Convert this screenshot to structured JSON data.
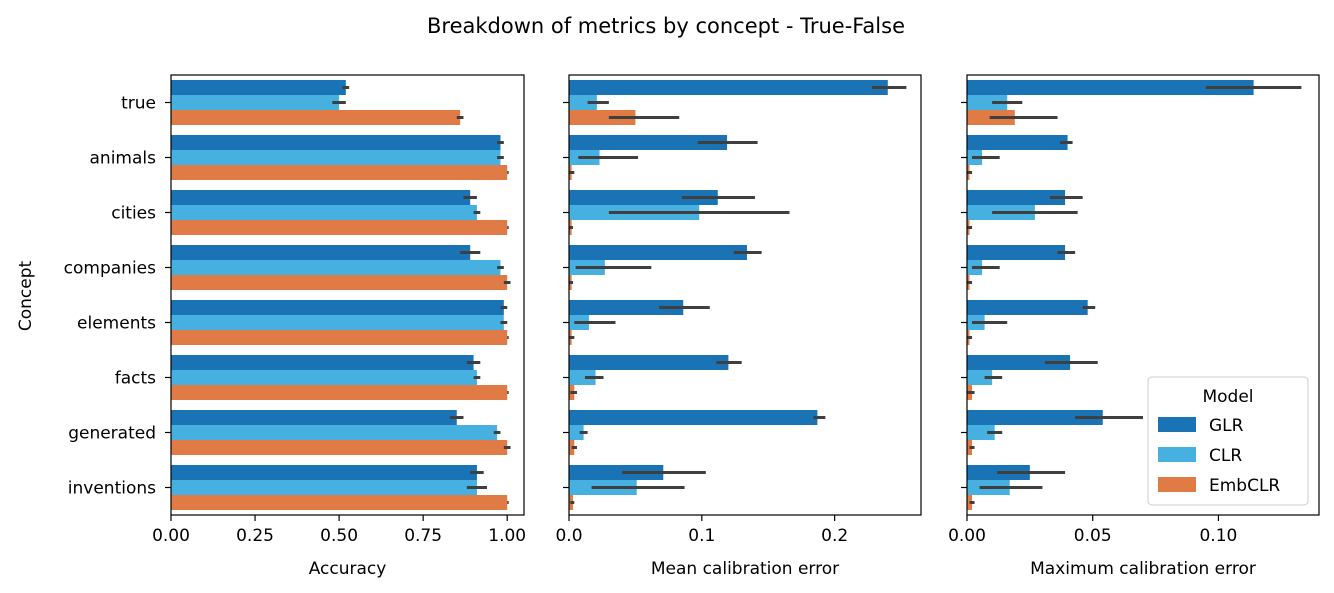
{
  "chart_data": {
    "type": "bar",
    "orientation": "horizontal",
    "title": "Breakdown of metrics by concept - True-False",
    "ylabel": "Concept",
    "categories": [
      "true",
      "animals",
      "cities",
      "companies",
      "elements",
      "facts",
      "generated",
      "inventions"
    ],
    "legend": {
      "title": "Model",
      "placement": "lower right",
      "entries": [
        "GLR",
        "CLR",
        "EmbCLR"
      ]
    },
    "colors": {
      "GLR": "#1a73b4",
      "CLR": "#46b1e1",
      "EmbCLR": "#e07b45",
      "error_bar": "#3f3f3f"
    },
    "panels": [
      {
        "xlabel": "Accuracy",
        "xlim": [
          0,
          1.05
        ],
        "xticks": [
          0.0,
          0.25,
          0.5,
          0.75,
          1.0
        ],
        "xtick_labels": [
          "0.00",
          "0.25",
          "0.50",
          "0.75",
          "1.00"
        ],
        "series": [
          {
            "name": "GLR",
            "values": [
              0.52,
              0.98,
              0.89,
              0.89,
              0.99,
              0.9,
              0.85,
              0.91
            ],
            "ci": [
              [
                0.51,
                0.53
              ],
              [
                0.97,
                0.99
              ],
              [
                0.87,
                0.91
              ],
              [
                0.86,
                0.92
              ],
              [
                0.98,
                1.0
              ],
              [
                0.88,
                0.92
              ],
              [
                0.83,
                0.87
              ],
              [
                0.89,
                0.93
              ]
            ]
          },
          {
            "name": "CLR",
            "values": [
              0.5,
              0.98,
              0.91,
              0.98,
              0.99,
              0.91,
              0.97,
              0.91
            ],
            "ci": [
              [
                0.48,
                0.52
              ],
              [
                0.97,
                0.99
              ],
              [
                0.9,
                0.92
              ],
              [
                0.97,
                0.99
              ],
              [
                0.98,
                1.0
              ],
              [
                0.9,
                0.92
              ],
              [
                0.96,
                0.98
              ],
              [
                0.88,
                0.94
              ]
            ]
          },
          {
            "name": "EmbCLR",
            "values": [
              0.86,
              1.0,
              1.0,
              1.0,
              1.0,
              1.0,
              1.0,
              1.0
            ],
            "ci": [
              [
                0.85,
                0.87
              ],
              [
                1.0,
                1.0
              ],
              [
                1.0,
                1.0
              ],
              [
                0.99,
                1.01
              ],
              [
                1.0,
                1.0
              ],
              [
                1.0,
                1.0
              ],
              [
                0.99,
                1.01
              ],
              [
                1.0,
                1.0
              ]
            ]
          }
        ]
      },
      {
        "xlabel": "Mean calibration error",
        "xlim": [
          0,
          0.265
        ],
        "xticks": [
          0.0,
          0.1,
          0.2
        ],
        "xtick_labels": [
          "0.0",
          "0.1",
          "0.2"
        ],
        "series": [
          {
            "name": "GLR",
            "values": [
              0.24,
              0.119,
              0.112,
              0.134,
              0.086,
              0.12,
              0.187,
              0.071
            ],
            "ci": [
              [
                0.228,
                0.254
              ],
              [
                0.097,
                0.142
              ],
              [
                0.085,
                0.14
              ],
              [
                0.124,
                0.145
              ],
              [
                0.068,
                0.106
              ],
              [
                0.111,
                0.13
              ],
              [
                0.184,
                0.193
              ],
              [
                0.04,
                0.103
              ]
            ]
          },
          {
            "name": "CLR",
            "values": [
              0.021,
              0.023,
              0.098,
              0.027,
              0.015,
              0.02,
              0.011,
              0.051
            ],
            "ci": [
              [
                0.014,
                0.03
              ],
              [
                0.007,
                0.052
              ],
              [
                0.03,
                0.166
              ],
              [
                0.005,
                0.062
              ],
              [
                0.004,
                0.035
              ],
              [
                0.012,
                0.026
              ],
              [
                0.008,
                0.014
              ],
              [
                0.017,
                0.087
              ]
            ]
          },
          {
            "name": "EmbCLR",
            "values": [
              0.05,
              0.002,
              0.002,
              0.002,
              0.002,
              0.004,
              0.004,
              0.003
            ],
            "ci": [
              [
                0.03,
                0.083
              ],
              [
                0.0,
                0.004
              ],
              [
                0.0,
                0.003
              ],
              [
                0.0,
                0.003
              ],
              [
                0.0,
                0.004
              ],
              [
                0.001,
                0.006
              ],
              [
                0.002,
                0.006
              ],
              [
                0.001,
                0.004
              ]
            ]
          }
        ]
      },
      {
        "xlabel": "Maximum calibration error",
        "xlim": [
          0,
          0.14
        ],
        "xticks": [
          0.0,
          0.05,
          0.1
        ],
        "xtick_labels": [
          "0.00",
          "0.05",
          "0.10"
        ],
        "series": [
          {
            "name": "GLR",
            "values": [
              0.114,
              0.04,
              0.039,
              0.039,
              0.048,
              0.041,
              0.054,
              0.025
            ],
            "ci": [
              [
                0.095,
                0.133
              ],
              [
                0.037,
                0.042
              ],
              [
                0.033,
                0.046
              ],
              [
                0.036,
                0.043
              ],
              [
                0.046,
                0.051
              ],
              [
                0.031,
                0.052
              ],
              [
                0.043,
                0.07
              ],
              [
                0.012,
                0.039
              ]
            ]
          },
          {
            "name": "CLR",
            "values": [
              0.016,
              0.006,
              0.027,
              0.006,
              0.007,
              0.01,
              0.011,
              0.017
            ],
            "ci": [
              [
                0.01,
                0.022
              ],
              [
                0.002,
                0.013
              ],
              [
                0.01,
                0.044
              ],
              [
                0.002,
                0.013
              ],
              [
                0.002,
                0.016
              ],
              [
                0.007,
                0.014
              ],
              [
                0.008,
                0.014
              ],
              [
                0.005,
                0.03
              ]
            ]
          },
          {
            "name": "EmbCLR",
            "values": [
              0.019,
              0.001,
              0.001,
              0.001,
              0.001,
              0.002,
              0.002,
              0.002
            ],
            "ci": [
              [
                0.009,
                0.036
              ],
              [
                0.0,
                0.002
              ],
              [
                0.0,
                0.002
              ],
              [
                0.0,
                0.002
              ],
              [
                0.0,
                0.002
              ],
              [
                0.0,
                0.003
              ],
              [
                0.001,
                0.003
              ],
              [
                0.001,
                0.003
              ]
            ]
          }
        ]
      }
    ]
  }
}
